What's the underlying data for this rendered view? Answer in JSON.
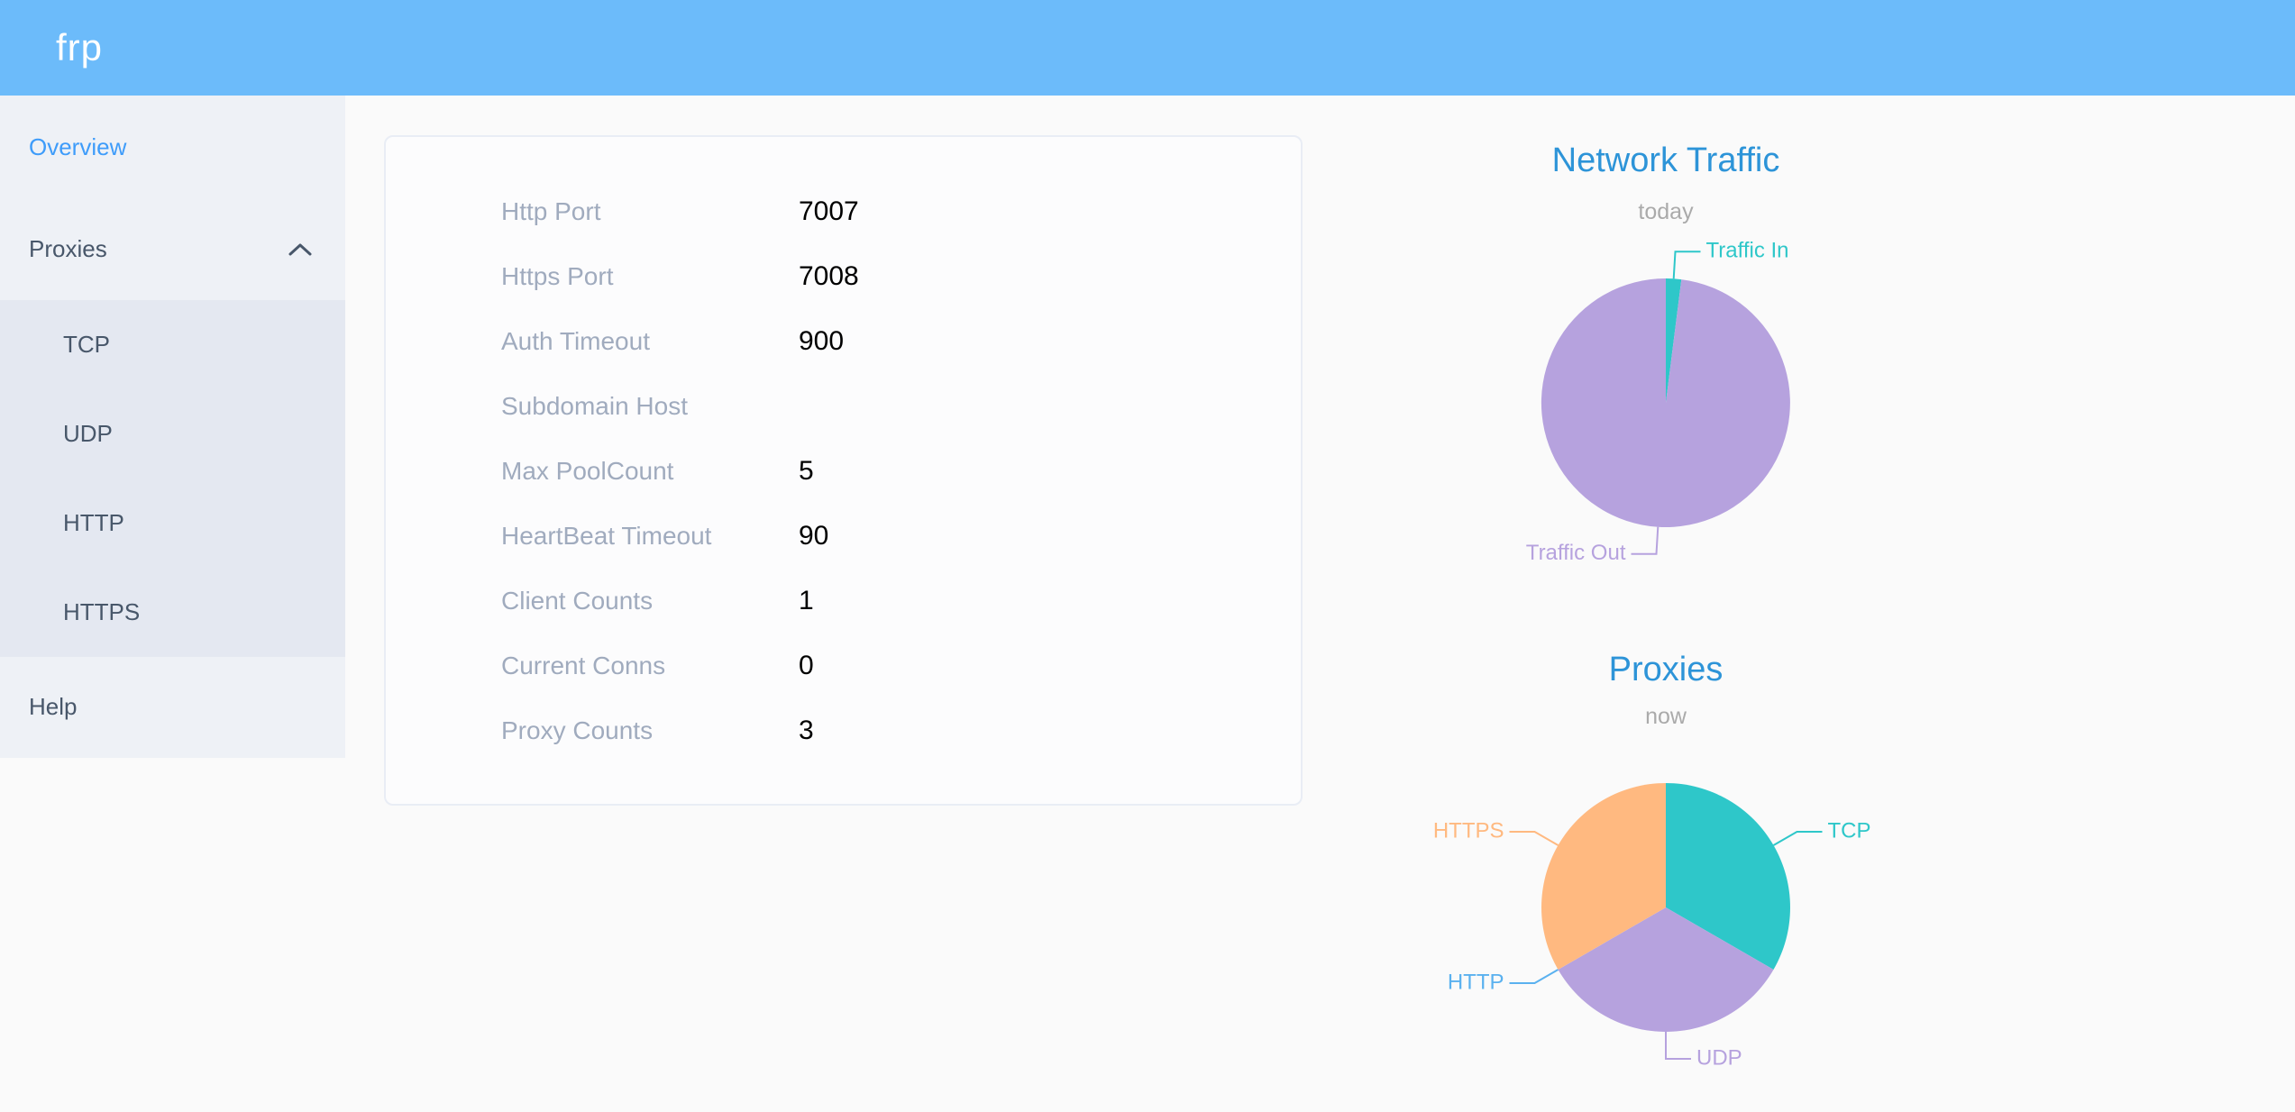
{
  "header": {
    "logo": "frp"
  },
  "sidebar": {
    "items": [
      {
        "label": "Overview",
        "active": true
      },
      {
        "label": "Proxies",
        "expanded": true,
        "children": [
          "TCP",
          "UDP",
          "HTTP",
          "HTTPS"
        ]
      },
      {
        "label": "Help"
      }
    ]
  },
  "server_info": {
    "rows": [
      {
        "label": "Http Port",
        "value": "7007"
      },
      {
        "label": "Https Port",
        "value": "7008"
      },
      {
        "label": "Auth Timeout",
        "value": "900"
      },
      {
        "label": "Subdomain Host",
        "value": ""
      },
      {
        "label": "Max PoolCount",
        "value": "5"
      },
      {
        "label": "HeartBeat Timeout",
        "value": "90"
      },
      {
        "label": "Client Counts",
        "value": "1"
      },
      {
        "label": "Current Conns",
        "value": "0"
      },
      {
        "label": "Proxy Counts",
        "value": "3"
      }
    ]
  },
  "chart_data": [
    {
      "type": "pie",
      "title": "Network Traffic",
      "subtitle": "today",
      "legend_position": "none",
      "values_note": "percent of pie area, estimated from slice angles",
      "slices": [
        {
          "name": "Traffic In",
          "value": 2,
          "color": "#2ec7c9"
        },
        {
          "name": "Traffic Out",
          "value": 98,
          "color": "#b6a2de"
        }
      ]
    },
    {
      "type": "pie",
      "title": "Proxies",
      "subtitle": "now",
      "legend_position": "none",
      "values_note": "proxy counts per type; HTTP slice has zero width but keeps its label",
      "slices": [
        {
          "name": "TCP",
          "value": 1,
          "color": "#2ec7c9"
        },
        {
          "name": "UDP",
          "value": 1,
          "color": "#b6a2de"
        },
        {
          "name": "HTTP",
          "value": 0,
          "color": "#5ab1ef"
        },
        {
          "name": "HTTPS",
          "value": 1,
          "color": "#ffb980"
        }
      ]
    }
  ],
  "colors": {
    "header_bg": "#6cbbfa",
    "sidebar_bg": "#eef1f6",
    "submenu_bg": "#e4e8f1",
    "sidebar_text": "#48576a",
    "active_link": "#3e9cfa",
    "chart_title": "#2d94d8",
    "chart_subtitle": "#aaaaaa",
    "info_label": "#a0abbe",
    "card_border": "#e9edf5"
  }
}
